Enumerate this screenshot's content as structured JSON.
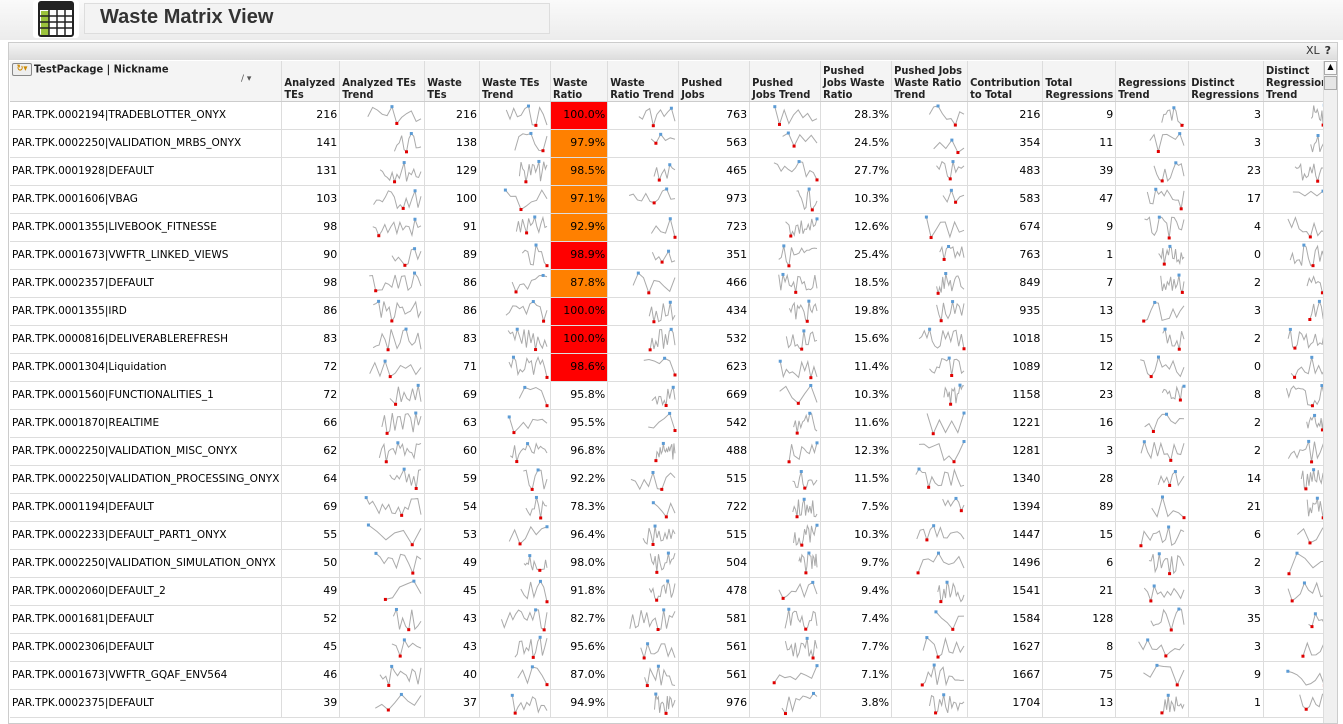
{
  "header": {
    "title": "Waste Matrix View",
    "logo": "table-grid-icon"
  },
  "caption": {
    "xl_label": "XL",
    "help_label": "?"
  },
  "columns": [
    "TestPackage | Nickname",
    "Analyzed TEs",
    "Analyzed TEs Trend",
    "Waste TEs",
    "Waste TEs Trend",
    "Waste Ratio",
    "Waste Ratio Trend",
    "Pushed Jobs",
    "Pushed Jobs Trend",
    "Pushed Jobs Waste Ratio",
    "Pushed Jobs Waste Ratio Trend",
    "Contribution to Total",
    "Total Regressions",
    "Regressions Trend",
    "Distinct Regressions",
    "Distinct Regressions Trend"
  ],
  "colors": {
    "red": "#ff0000",
    "orange": "#ff8000",
    "spark_line": "#aaaaaa",
    "spark_max": "#e00000",
    "spark_min": "#5b9bd5"
  },
  "rows": [
    [
      "PAR.TPK.0002194|TRADEBLOTTER_ONYX",
      "216",
      "216",
      "100.0%",
      "763",
      "28.3%",
      "216",
      "9",
      "3",
      "red"
    ],
    [
      "PAR.TPK.0002250|VALIDATION_MRBS_ONYX",
      "141",
      "138",
      "97.9%",
      "563",
      "24.5%",
      "354",
      "11",
      "3",
      "orange"
    ],
    [
      "PAR.TPK.0001928|DEFAULT",
      "131",
      "129",
      "98.5%",
      "465",
      "27.7%",
      "483",
      "39",
      "23",
      "orange"
    ],
    [
      "PAR.TPK.0001606|VBAG",
      "103",
      "100",
      "97.1%",
      "973",
      "10.3%",
      "583",
      "47",
      "17",
      "orange"
    ],
    [
      "PAR.TPK.0001355|LIVEBOOK_FITNESSE",
      "98",
      "91",
      "92.9%",
      "723",
      "12.6%",
      "674",
      "9",
      "4",
      "orange"
    ],
    [
      "PAR.TPK.0001673|VWFTR_LINKED_VIEWS",
      "90",
      "89",
      "98.9%",
      "351",
      "25.4%",
      "763",
      "1",
      "0",
      "red"
    ],
    [
      "PAR.TPK.0002357|DEFAULT",
      "98",
      "86",
      "87.8%",
      "466",
      "18.5%",
      "849",
      "7",
      "2",
      "orange"
    ],
    [
      "PAR.TPK.0001355|IRD",
      "86",
      "86",
      "100.0%",
      "434",
      "19.8%",
      "935",
      "13",
      "3",
      "red"
    ],
    [
      "PAR.TPK.0000816|DELIVERABLEREFRESH",
      "83",
      "83",
      "100.0%",
      "532",
      "15.6%",
      "1018",
      "15",
      "2",
      "red"
    ],
    [
      "PAR.TPK.0001304|Liquidation",
      "72",
      "71",
      "98.6%",
      "623",
      "11.4%",
      "1089",
      "12",
      "0",
      "red"
    ],
    [
      "PAR.TPK.0001560|FUNCTIONALITIES_1",
      "72",
      "69",
      "95.8%",
      "669",
      "10.3%",
      "1158",
      "23",
      "8",
      ""
    ],
    [
      "PAR.TPK.0001870|REALTIME",
      "66",
      "63",
      "95.5%",
      "542",
      "11.6%",
      "1221",
      "16",
      "2",
      ""
    ],
    [
      "PAR.TPK.0002250|VALIDATION_MISC_ONYX",
      "62",
      "60",
      "96.8%",
      "488",
      "12.3%",
      "1281",
      "3",
      "2",
      ""
    ],
    [
      "PAR.TPK.0002250|VALIDATION_PROCESSING_ONYX",
      "64",
      "59",
      "92.2%",
      "515",
      "11.5%",
      "1340",
      "28",
      "14",
      ""
    ],
    [
      "PAR.TPK.0001194|DEFAULT",
      "69",
      "54",
      "78.3%",
      "722",
      "7.5%",
      "1394",
      "89",
      "21",
      ""
    ],
    [
      "PAR.TPK.0002233|DEFAULT_PART1_ONYX",
      "55",
      "53",
      "96.4%",
      "515",
      "10.3%",
      "1447",
      "15",
      "6",
      ""
    ],
    [
      "PAR.TPK.0002250|VALIDATION_SIMULATION_ONYX",
      "50",
      "49",
      "98.0%",
      "504",
      "9.7%",
      "1496",
      "6",
      "2",
      ""
    ],
    [
      "PAR.TPK.0002060|DEFAULT_2",
      "49",
      "45",
      "91.8%",
      "478",
      "9.4%",
      "1541",
      "21",
      "3",
      ""
    ],
    [
      "PAR.TPK.0001681|DEFAULT",
      "52",
      "43",
      "82.7%",
      "581",
      "7.4%",
      "1584",
      "128",
      "35",
      ""
    ],
    [
      "PAR.TPK.0002306|DEFAULT",
      "45",
      "43",
      "95.6%",
      "561",
      "7.7%",
      "1627",
      "8",
      "3",
      ""
    ],
    [
      "PAR.TPK.0001673|VWFTR_GQAF_ENV564",
      "46",
      "40",
      "87.0%",
      "561",
      "7.1%",
      "1667",
      "75",
      "9",
      ""
    ],
    [
      "PAR.TPK.0002375|DEFAULT",
      "39",
      "37",
      "94.9%",
      "976",
      "3.8%",
      "1704",
      "13",
      "1",
      ""
    ]
  ]
}
